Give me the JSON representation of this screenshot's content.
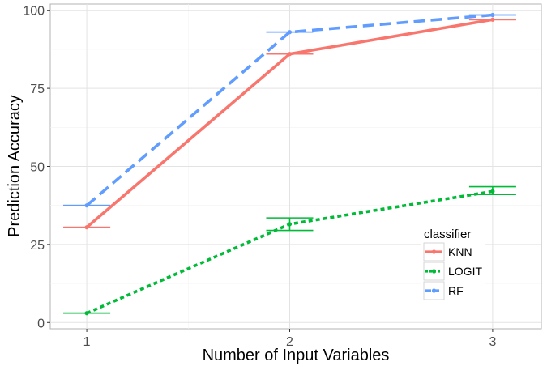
{
  "chart_data": {
    "type": "line",
    "title": "",
    "xlabel": "Number of Input Variables",
    "ylabel": "Prediction Accuracy",
    "x": [
      1,
      2,
      3
    ],
    "x_ticks": [
      "1",
      "2",
      "3"
    ],
    "y_ticks": [
      "0",
      "25",
      "50",
      "75",
      "100"
    ],
    "xlim": [
      0.82,
      3.24
    ],
    "ylim": [
      -2,
      102
    ],
    "grid": true,
    "legend": {
      "title": "classifier",
      "position": "right-inside"
    },
    "series": [
      {
        "name": "KNN",
        "color": "#F8766D",
        "linestyle": "solid",
        "values": [
          30.5,
          86,
          97
        ],
        "error_low": [
          30.5,
          86,
          97
        ],
        "error_high": [
          30.5,
          86,
          97
        ]
      },
      {
        "name": "LOGIT",
        "color": "#00BA38",
        "linestyle": "dotted",
        "values": [
          3,
          31.5,
          42
        ],
        "error_low": [
          3,
          29.5,
          41
        ],
        "error_high": [
          3,
          33.5,
          43.5
        ]
      },
      {
        "name": "RF",
        "color": "#619CFF",
        "linestyle": "dashed",
        "values": [
          37.5,
          93,
          98.5
        ],
        "error_low": [
          37.5,
          93,
          98.5
        ],
        "error_high": [
          37.5,
          93,
          98.5
        ]
      }
    ]
  }
}
